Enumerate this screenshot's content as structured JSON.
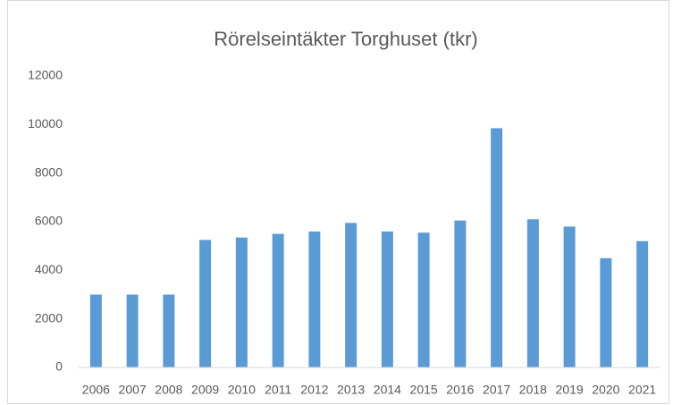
{
  "chart_data": {
    "type": "bar",
    "title": "Rörelseintäkter Torghuset (tkr)",
    "categories": [
      "2006",
      "2007",
      "2008",
      "2009",
      "2010",
      "2011",
      "2012",
      "2013",
      "2014",
      "2015",
      "2016",
      "2017",
      "2018",
      "2019",
      "2020",
      "2021"
    ],
    "values": [
      3000,
      3000,
      3000,
      5250,
      5350,
      5500,
      5600,
      5950,
      5600,
      5550,
      6050,
      9850,
      6100,
      5800,
      4500,
      5200
    ],
    "color": "#5b9bd5",
    "ylim": [
      0,
      12000
    ],
    "yticks": [
      0,
      2000,
      4000,
      6000,
      8000,
      10000,
      12000
    ],
    "grid": false
  }
}
